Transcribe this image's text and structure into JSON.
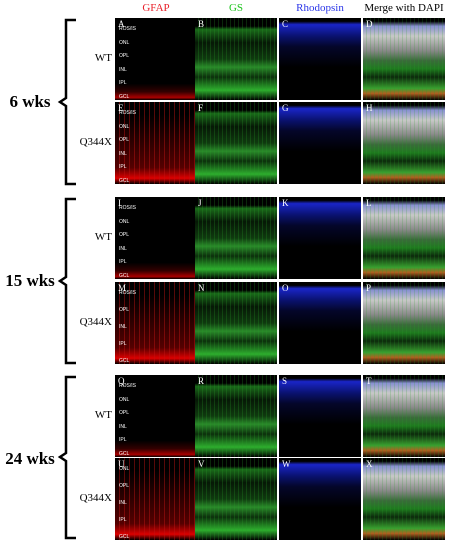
{
  "headers": [
    {
      "text": "GFAP",
      "color": "#e8202a"
    },
    {
      "text": "GS",
      "color": "#1fc41f"
    },
    {
      "text": "Rhodopsin",
      "color": "#2a35e8"
    },
    {
      "text": "Merge with DAPI",
      "color": "#000000"
    }
  ],
  "groups": [
    {
      "label": "6 wks",
      "rows": [
        {
          "label": "WT",
          "panels": [
            "A",
            "B",
            "C",
            "D"
          ],
          "layers": [
            "ROS/IS",
            "ONL",
            "OPL",
            "INL",
            "IPL",
            "GCL"
          ]
        },
        {
          "label": "Q344X",
          "panels": [
            "E",
            "F",
            "G",
            "H"
          ],
          "layers": [
            "ROS/IS",
            "ONL",
            "OPL",
            "INL",
            "IPL",
            "GCL"
          ]
        }
      ]
    },
    {
      "label": "15 wks",
      "rows": [
        {
          "label": "WT",
          "panels": [
            "I",
            "J",
            "K",
            "L"
          ],
          "layers": [
            "ROS/IS",
            "ONL",
            "OPL",
            "INL",
            "IPL",
            "GCL"
          ]
        },
        {
          "label": "Q344X",
          "panels": [
            "M",
            "N",
            "O",
            "P"
          ],
          "layers": [
            "ROS/IS",
            "OPL",
            "INL",
            "IPL",
            "GCL"
          ]
        }
      ]
    },
    {
      "label": "24 wks",
      "rows": [
        {
          "label": "WT",
          "panels": [
            "Q",
            "R",
            "S",
            "T"
          ],
          "layers": [
            "ROS/IS",
            "ONL",
            "OPL",
            "INL",
            "IPL",
            "GCL"
          ]
        },
        {
          "label": "Q344X",
          "panels": [
            "U",
            "V",
            "W",
            "X"
          ],
          "layers": [
            "ONL",
            "OPL",
            "INL",
            "IPL",
            "GCL"
          ]
        }
      ]
    }
  ]
}
